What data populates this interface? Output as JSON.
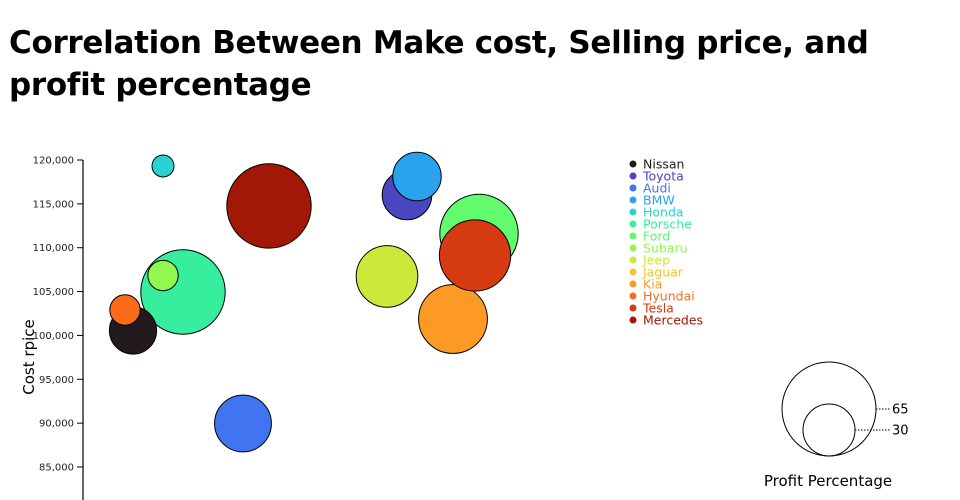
{
  "title": "Correlation Between Make cost, Selling price, and profit percentage",
  "chart_data": {
    "type": "scatter",
    "title": "Correlation Between Make cost, Selling price, and profit percentage",
    "ylabel": "Cost rpice",
    "xlabel": "",
    "ylim": [
      81000,
      120000
    ],
    "xlim": [
      100000,
      230000
    ],
    "yticks": [
      120000,
      115000,
      110000,
      105000,
      100000,
      95000,
      90000,
      85000
    ],
    "ytick_labels": [
      "120,000",
      "115,000",
      "110,000",
      "105,000",
      "100,000",
      "95,000",
      "90,000",
      "85,000"
    ],
    "size_legend": {
      "title": "Profit Percentage",
      "values": [
        65,
        30
      ]
    },
    "legend": [
      "Nissan",
      "Toyota",
      "Audi",
      "BMW",
      "Honda",
      "Porsche",
      "Ford",
      "Subaru",
      "Jeep",
      "Jaguar",
      "Kia",
      "Hyundai",
      "Tesla",
      "Mercedes"
    ],
    "colors": {
      "Nissan": "#231a1d",
      "Toyota": "#4a45c0",
      "Audi": "#4174f0",
      "BMW": "#2aa3ef",
      "Honda": "#28d2d0",
      "Porsche": "#37ee9e",
      "Ford": "#61fb6d",
      "Subaru": "#93f84d",
      "Jeep": "#cbe83b",
      "Jaguar": "#f8c230",
      "Kia": "#fd9a26",
      "Hyundai": "#fc6b1c",
      "Tesla": "#d63a10",
      "Mercedes": "#a31706"
    },
    "points": [
      {
        "make": "Porsche",
        "x": 125000,
        "y": 104950,
        "profit": 57
      },
      {
        "make": "Mercedes",
        "x": 146500,
        "y": 114760,
        "profit": 57
      },
      {
        "make": "Ford",
        "x": 199000,
        "y": 111620,
        "profit": 52
      },
      {
        "make": "Kia",
        "x": 192500,
        "y": 101870,
        "profit": 44
      },
      {
        "make": "Tesla",
        "x": 198000,
        "y": 109110,
        "profit": 46
      },
      {
        "make": "Jeep",
        "x": 176000,
        "y": 106720,
        "profit": 38
      },
      {
        "make": "Audi",
        "x": 140000,
        "y": 89960,
        "profit": 34
      },
      {
        "make": "Toyota",
        "x": 181000,
        "y": 116010,
        "profit": 28
      },
      {
        "make": "BMW",
        "x": 183500,
        "y": 118120,
        "profit": 27
      },
      {
        "make": "Nissan",
        "x": 112500,
        "y": 100560,
        "profit": 26
      },
      {
        "make": "Subaru",
        "x": 120000,
        "y": 106830,
        "profit": 12
      },
      {
        "make": "Hyundai",
        "x": 110500,
        "y": 102900,
        "profit": 12
      },
      {
        "make": "Honda",
        "x": 120000,
        "y": 119320,
        "profit": 5
      }
    ]
  }
}
